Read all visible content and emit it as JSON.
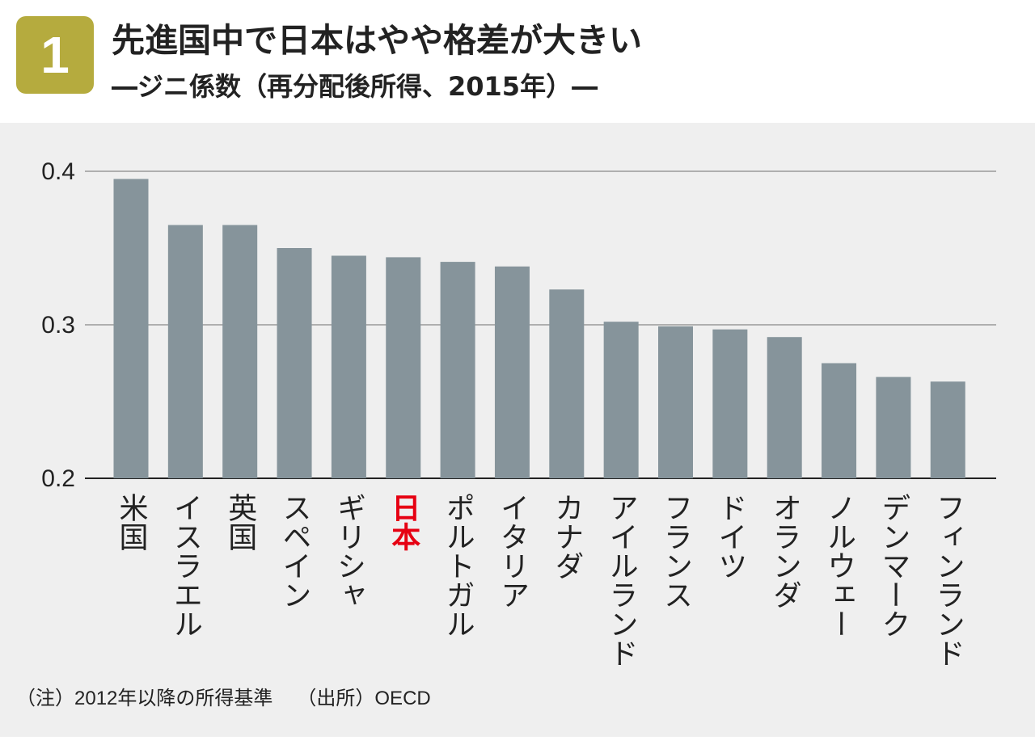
{
  "header": {
    "badge_number": "1",
    "title": "先進国中で日本はやや格差が大きい",
    "subtitle": "―ジニ係数（再分配後所得、2015年）―",
    "badge_color": "#b5ab3e"
  },
  "chart_data": {
    "type": "bar",
    "categories": [
      "米国",
      "イスラエル",
      "英国",
      "スペイン",
      "ギリシャ",
      "日本",
      "ポルトガル",
      "イタリア",
      "カナダ",
      "アイルランド",
      "フランス",
      "ドイツ",
      "オランダ",
      "ノルウェー",
      "デンマーク",
      "フィンランド"
    ],
    "values": [
      0.395,
      0.365,
      0.365,
      0.35,
      0.345,
      0.344,
      0.341,
      0.338,
      0.323,
      0.302,
      0.299,
      0.297,
      0.292,
      0.275,
      0.266,
      0.263
    ],
    "ylim": [
      0.2,
      0.4
    ],
    "yticks": [
      "0.2",
      "0.3",
      "0.4"
    ],
    "highlight_category": "日本",
    "bar_color": "#86949b",
    "highlight_label_color": "#e60012",
    "grid": true
  },
  "footer": {
    "note": "（注）2012年以降の所得基準",
    "source": "（出所）OECD"
  }
}
